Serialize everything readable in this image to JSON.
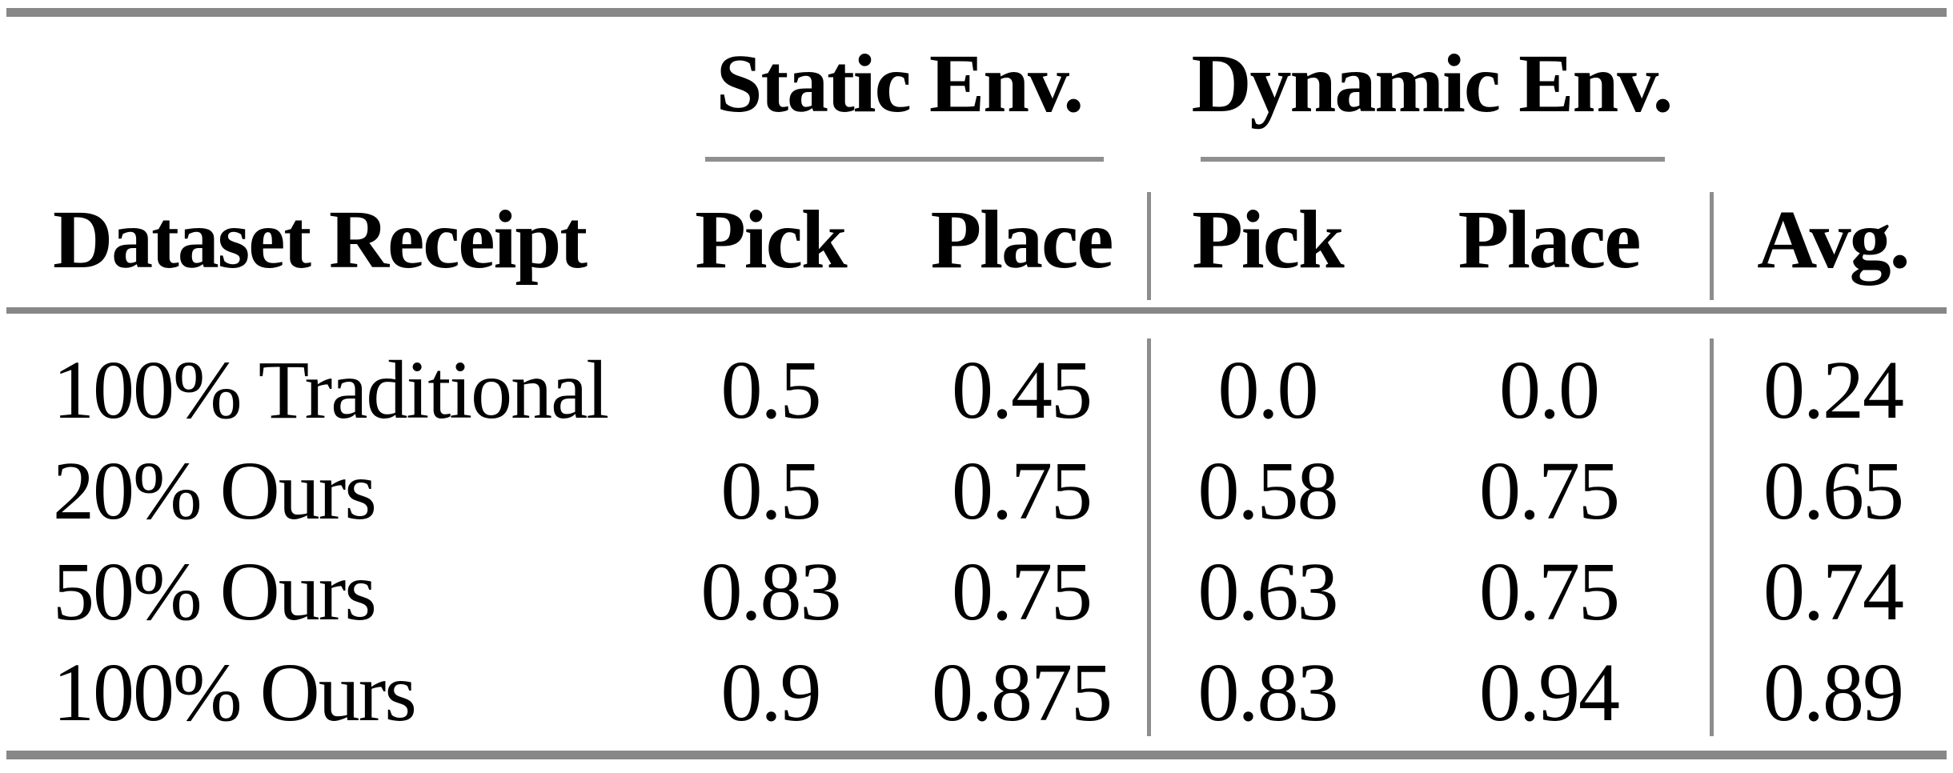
{
  "table": {
    "group_headers": [
      "Static Env.",
      "Dynamic Env."
    ],
    "column_headers": [
      "Dataset Receipt",
      "Pick",
      "Place",
      "Pick",
      "Place",
      "Avg."
    ],
    "rows": [
      {
        "label": "100% Traditional",
        "values": [
          "0.5",
          "0.45",
          "0.0",
          "0.0",
          "0.24"
        ]
      },
      {
        "label": "20% Ours",
        "values": [
          "0.5",
          "0.75",
          "0.58",
          "0.75",
          "0.65"
        ]
      },
      {
        "label": "50% Ours",
        "values": [
          "0.83",
          "0.75",
          "0.63",
          "0.75",
          "0.74"
        ]
      },
      {
        "label": "100% Ours",
        "values": [
          "0.9",
          "0.875",
          "0.83",
          "0.94",
          "0.89"
        ]
      }
    ],
    "colors": {
      "rule_heavy": "#878787",
      "rule_light": "#8f8f8f",
      "text": "#000000",
      "background": "#ffffff"
    }
  }
}
